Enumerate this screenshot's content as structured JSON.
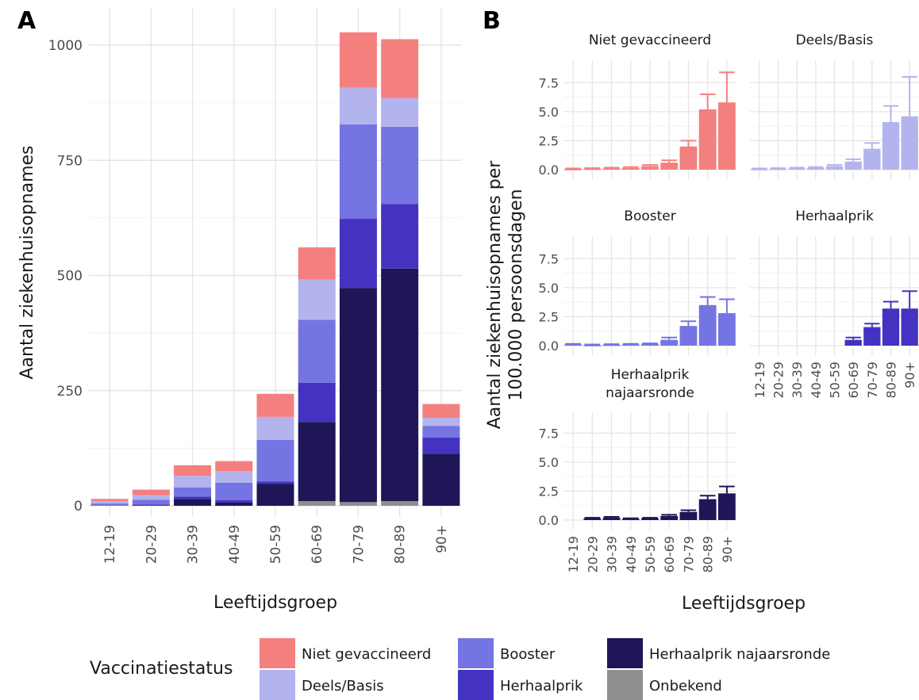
{
  "colors": {
    "Niet gevaccineerd": "#f47f7f",
    "Deels/Basis": "#b3b3ee",
    "Booster": "#7474e3",
    "Herhaalprik": "#4433c0",
    "Herhaalprik najaarsronde": "#1e1657",
    "Onbekend": "#8f8f8f"
  },
  "chart_data": [
    {
      "panel": "A",
      "type": "bar",
      "stacked": true,
      "xlabel": "Leeftijdsgroep",
      "ylabel": "Aantal ziekenhuisopnames",
      "ylim": [
        0,
        1060
      ],
      "yticks": [
        0,
        250,
        500,
        750,
        1000
      ],
      "categories": [
        "12-19",
        "20-29",
        "30-39",
        "40-49",
        "50-59",
        "60-69",
        "70-79",
        "80-89",
        "90+"
      ],
      "series": [
        {
          "name": "Onbekend",
          "values": [
            0,
            0,
            0,
            0,
            0,
            10,
            8,
            10,
            0
          ]
        },
        {
          "name": "Herhaalprik najaarsronde",
          "values": [
            0,
            0,
            15,
            7,
            48,
            172,
            465,
            505,
            113
          ]
        },
        {
          "name": "Herhaalprik",
          "values": [
            0,
            3,
            5,
            5,
            5,
            85,
            150,
            140,
            35
          ]
        },
        {
          "name": "Booster",
          "values": [
            5,
            10,
            20,
            38,
            90,
            137,
            205,
            168,
            25
          ]
        },
        {
          "name": "Deels/Basis",
          "values": [
            5,
            10,
            25,
            25,
            50,
            87,
            80,
            62,
            18
          ]
        },
        {
          "name": "Niet gevaccineerd",
          "values": [
            5,
            12,
            23,
            22,
            50,
            70,
            120,
            128,
            30
          ]
        }
      ]
    },
    {
      "panel": "B",
      "type": "bar",
      "facets": true,
      "xlabel": "Leeftijdsgroep",
      "ylabel": [
        "Aantal ziekenhuisopnames per",
        "100.000 persoonsdagen"
      ],
      "ylim": [
        0,
        8.6
      ],
      "yticks": [
        0.0,
        2.5,
        5.0,
        7.5
      ],
      "ytick_labels": [
        "0.0",
        "2.5",
        "5.0",
        "7.5"
      ],
      "categories": [
        "12-19",
        "20-29",
        "30-39",
        "40-49",
        "50-59",
        "60-69",
        "70-79",
        "80-89",
        "90+"
      ],
      "panels": [
        {
          "title": [
            "Niet gevaccineerd"
          ],
          "status": "Niet gevaccineerd",
          "values": [
            0.05,
            0.08,
            0.1,
            0.15,
            0.3,
            0.6,
            2.0,
            5.2,
            5.8
          ],
          "upper": [
            0.1,
            0.13,
            0.17,
            0.22,
            0.4,
            0.8,
            2.5,
            6.5,
            8.4
          ]
        },
        {
          "title": [
            "Deels/Basis"
          ],
          "status": "Deels/Basis",
          "values": [
            0.05,
            0.08,
            0.1,
            0.15,
            0.3,
            0.7,
            1.8,
            4.1,
            4.6
          ],
          "upper": [
            0.1,
            0.13,
            0.17,
            0.22,
            0.4,
            0.9,
            2.3,
            5.5,
            8.0
          ]
        },
        {
          "title": [
            "Booster"
          ],
          "status": "Booster",
          "values": [
            0.1,
            0.05,
            0.08,
            0.1,
            0.15,
            0.5,
            1.7,
            3.5,
            2.8
          ],
          "upper": [
            0.15,
            0.1,
            0.13,
            0.15,
            0.2,
            0.7,
            2.1,
            4.2,
            4.0
          ]
        },
        {
          "title": [
            "Herhaalprik"
          ],
          "status": "Herhaalprik",
          "values": [
            null,
            null,
            null,
            null,
            null,
            0.5,
            1.6,
            3.2,
            3.2
          ],
          "upper": [
            null,
            null,
            null,
            null,
            null,
            0.7,
            1.9,
            3.8,
            4.7
          ]
        },
        {
          "title": [
            "Herhaalprik",
            "najaarsronde"
          ],
          "status": "Herhaalprik najaarsronde",
          "values": [
            null,
            0.15,
            0.2,
            0.1,
            0.15,
            0.35,
            0.7,
            1.8,
            2.3
          ],
          "upper": [
            null,
            0.2,
            0.27,
            0.15,
            0.2,
            0.45,
            0.85,
            2.1,
            2.9
          ]
        }
      ]
    }
  ],
  "legend": {
    "title": "Vaccinatiestatus",
    "items": [
      "Niet gevaccineerd",
      "Deels/Basis",
      "Booster",
      "Herhaalprik",
      "Herhaalprik najaarsronde",
      "Onbekend"
    ]
  },
  "panel_labels": [
    "A",
    "B"
  ]
}
